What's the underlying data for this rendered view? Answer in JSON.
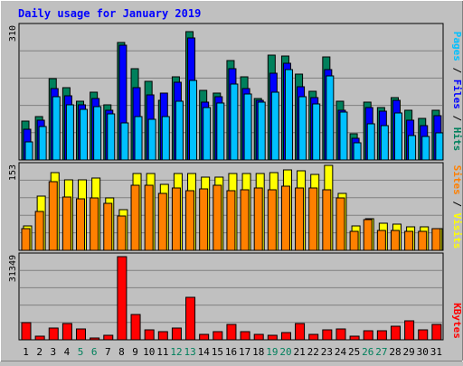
{
  "chart_data": [
    {
      "type": "bar",
      "title": "Daily usage for January 2019",
      "x_days": [
        1,
        2,
        3,
        4,
        5,
        6,
        7,
        8,
        9,
        10,
        11,
        12,
        13,
        14,
        15,
        16,
        17,
        18,
        19,
        20,
        21,
        22,
        23,
        24,
        25,
        26,
        27,
        28,
        29,
        30,
        31
      ],
      "weekend_days": [
        5,
        6,
        12,
        13,
        19,
        20,
        26,
        27
      ],
      "ymax_label": "310",
      "ymax": 310,
      "series": [
        {
          "name": "Pages",
          "color": "#00c0ff",
          "values": [
            42,
            78,
            148,
            128,
            118,
            124,
            107,
            86,
            101,
            95,
            102,
            137,
            185,
            122,
            133,
            177,
            154,
            134,
            159,
            210,
            148,
            130,
            197,
            112,
            41,
            84,
            80,
            109,
            56,
            55,
            64
          ]
        },
        {
          "name": "Files",
          "color": "#0000ff",
          "values": [
            72,
            92,
            166,
            149,
            128,
            143,
            116,
            268,
            169,
            152,
            156,
            182,
            285,
            135,
            147,
            212,
            166,
            140,
            202,
            226,
            170,
            146,
            211,
            117,
            51,
            123,
            113,
            139,
            93,
            80,
            103
          ]
        },
        {
          "name": "Hits",
          "color": "#00805c",
          "values": [
            90,
            102,
            190,
            168,
            138,
            158,
            128,
            275,
            212,
            184,
            140,
            194,
            300,
            162,
            155,
            232,
            195,
            144,
            245,
            242,
            200,
            160,
            241,
            137,
            62,
            135,
            122,
            146,
            117,
            98,
            116
          ]
        }
      ]
    },
    {
      "type": "bar",
      "ymax_label": "153",
      "ymax": 153,
      "series": [
        {
          "name": "Sites",
          "color": "#ff8000",
          "values": [
            40,
            70,
            125,
            97,
            93,
            96,
            86,
            62,
            118,
            118,
            103,
            113,
            108,
            112,
            119,
            108,
            110,
            113,
            111,
            116,
            114,
            113,
            111,
            96,
            34,
            56,
            37,
            37,
            34,
            34,
            40
          ]
        },
        {
          "name": "Visits",
          "color": "#ffff00",
          "values": [
            44,
            98,
            141,
            128,
            128,
            131,
            95,
            74,
            140,
            140,
            120,
            140,
            140,
            134,
            134,
            140,
            140,
            140,
            141,
            146,
            145,
            138,
            155,
            104,
            45,
            58,
            49,
            47,
            42,
            43,
            40
          ]
        }
      ]
    },
    {
      "type": "bar",
      "ymax_label": "31349",
      "ymax": 31349,
      "series": [
        {
          "name": "KBytes",
          "color": "#ff0000",
          "values": [
            6380,
            1400,
            4450,
            6080,
            3980,
            800,
            1760,
            31349,
            9620,
            3680,
            2910,
            4290,
            15900,
            2050,
            2930,
            5760,
            2920,
            1910,
            1580,
            2890,
            6190,
            2120,
            3760,
            3980,
            1200,
            3560,
            3310,
            5270,
            7290,
            3640,
            5850
          ]
        }
      ]
    }
  ],
  "right_labels": {
    "pages": "Pages",
    "files": "Files",
    "hits": "Hits",
    "sites": "Sites",
    "visits": "Visits",
    "kbytes": "KBytes",
    "sep": " / "
  },
  "colors": {
    "background": "#c0c0c0",
    "panel": "#c0c0c0",
    "title": "#0000ff",
    "weekday_label": "#000000",
    "weekend_label": "#00805c",
    "gridline": "#808080"
  }
}
